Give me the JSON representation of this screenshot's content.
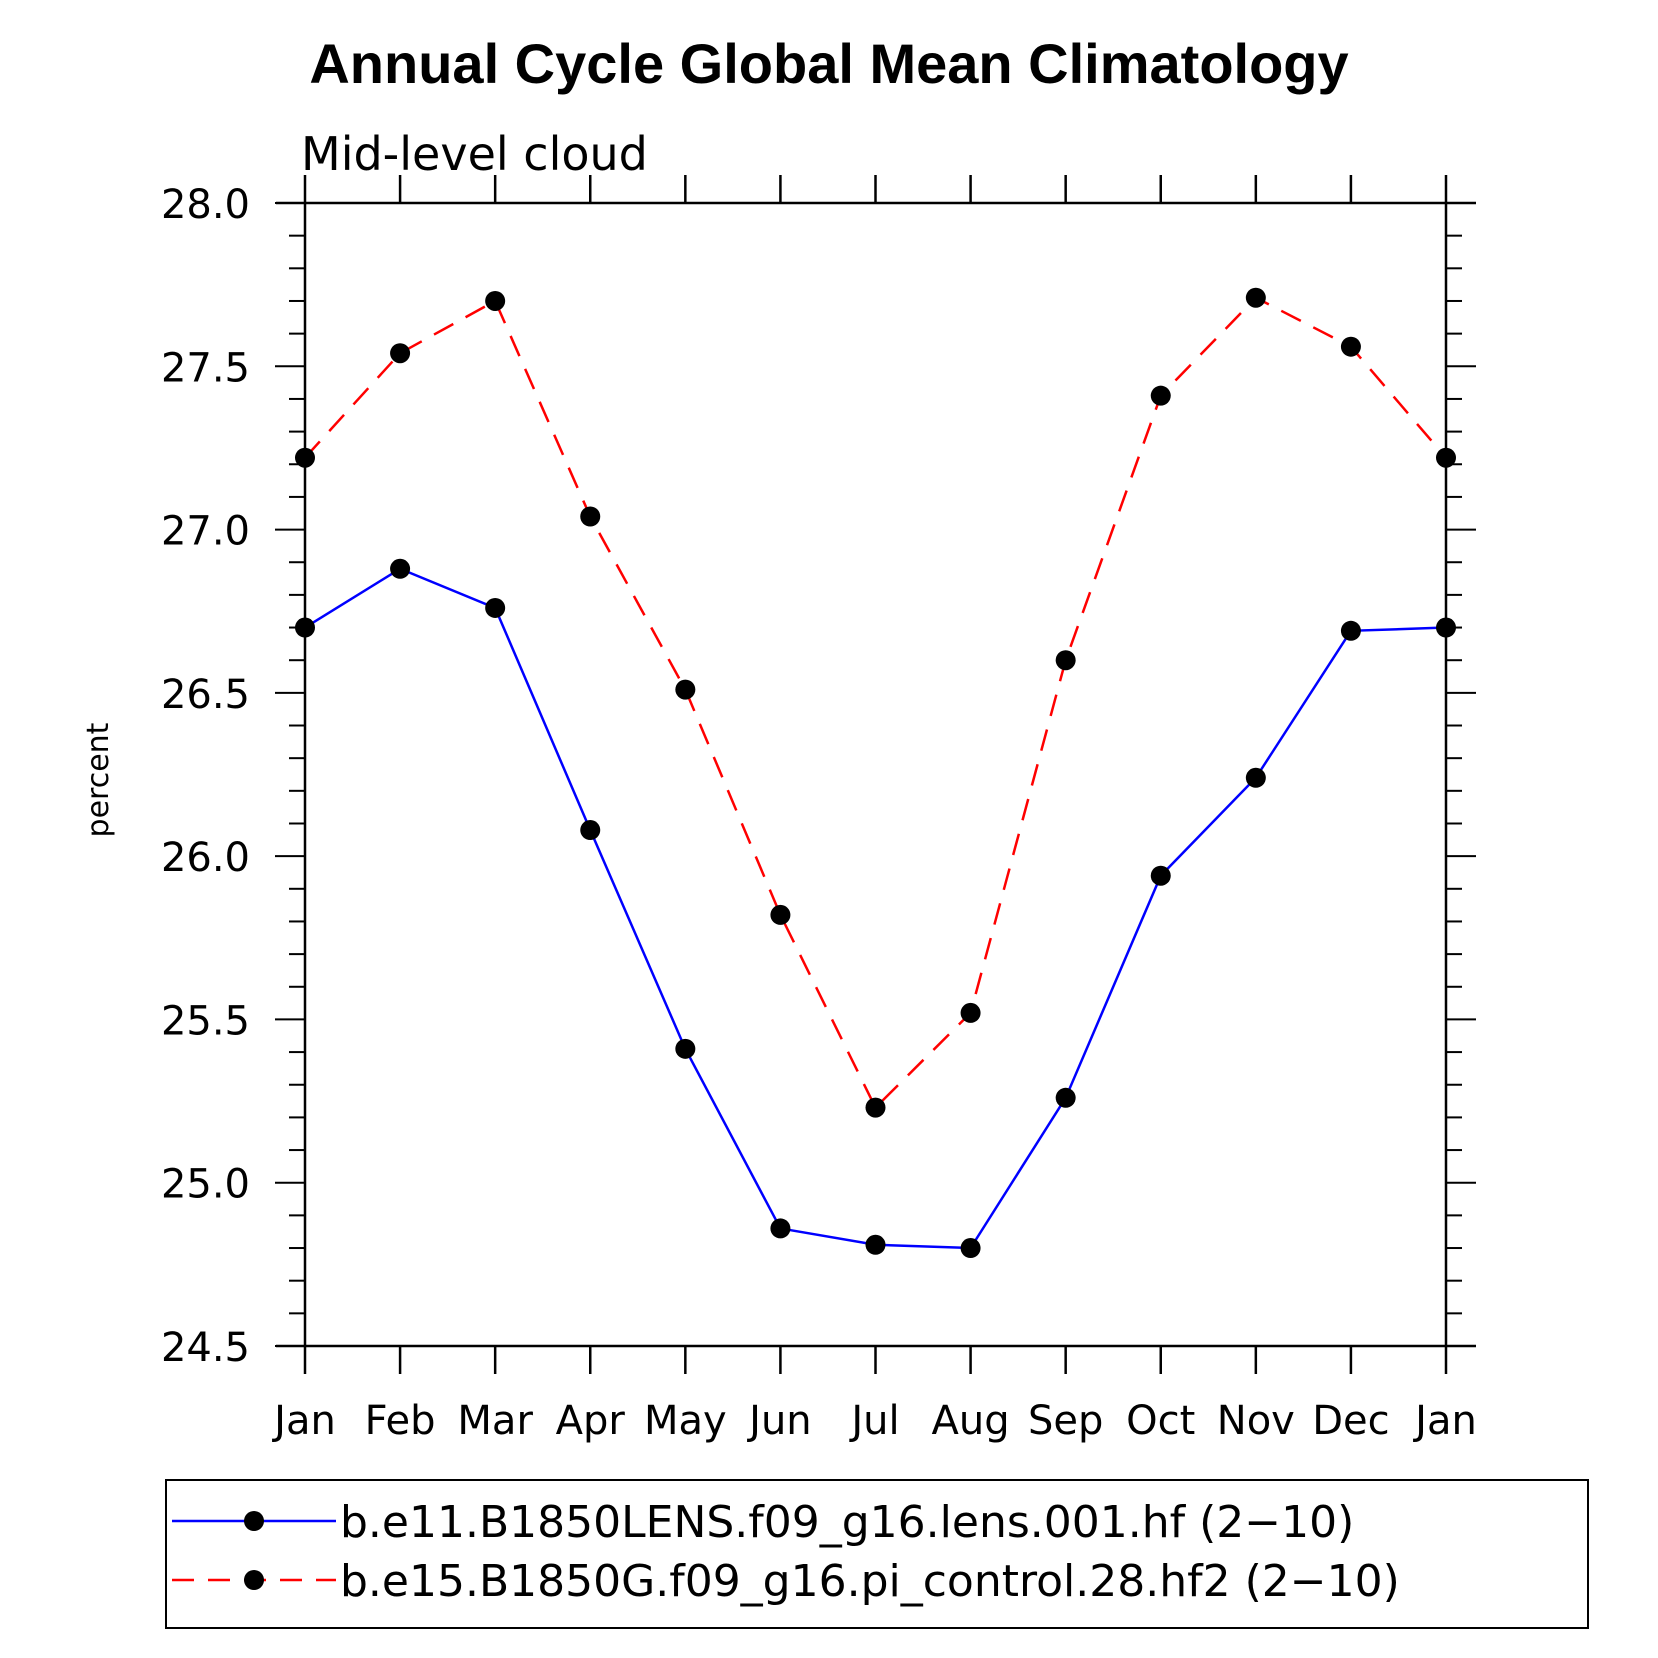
{
  "chart_data": {
    "type": "line",
    "title": "Annual Cycle Global Mean Climatology",
    "subtitle": "Mid-level cloud",
    "xlabel": "",
    "ylabel": "percent",
    "categories": [
      "Jan",
      "Feb",
      "Mar",
      "Apr",
      "May",
      "Jun",
      "Jul",
      "Aug",
      "Sep",
      "Oct",
      "Nov",
      "Dec",
      "Jan"
    ],
    "ylim": [
      24.5,
      28.0
    ],
    "yticks": [
      "24.5",
      "25.0",
      "25.5",
      "26.0",
      "26.5",
      "27.0",
      "27.5",
      "28.0"
    ],
    "grid": false,
    "legend_position": "bottom",
    "series": [
      {
        "name": "b.e11.B1850LENS.f09_g16.lens.001.hf (2−10)",
        "color": "#0000ff",
        "style": "solid",
        "marker": "circle",
        "values": [
          26.7,
          26.88,
          26.76,
          26.08,
          25.41,
          24.86,
          24.81,
          24.8,
          25.26,
          25.94,
          26.24,
          26.69,
          26.7
        ]
      },
      {
        "name": "b.e15.B1850G.f09_g16.pi_control.28.hf2 (2−10)",
        "color": "#ff0000",
        "style": "dashed",
        "marker": "circle",
        "values": [
          27.22,
          27.54,
          27.7,
          27.04,
          26.51,
          25.82,
          25.23,
          25.52,
          26.6,
          27.41,
          27.71,
          27.56,
          27.22
        ]
      }
    ]
  }
}
